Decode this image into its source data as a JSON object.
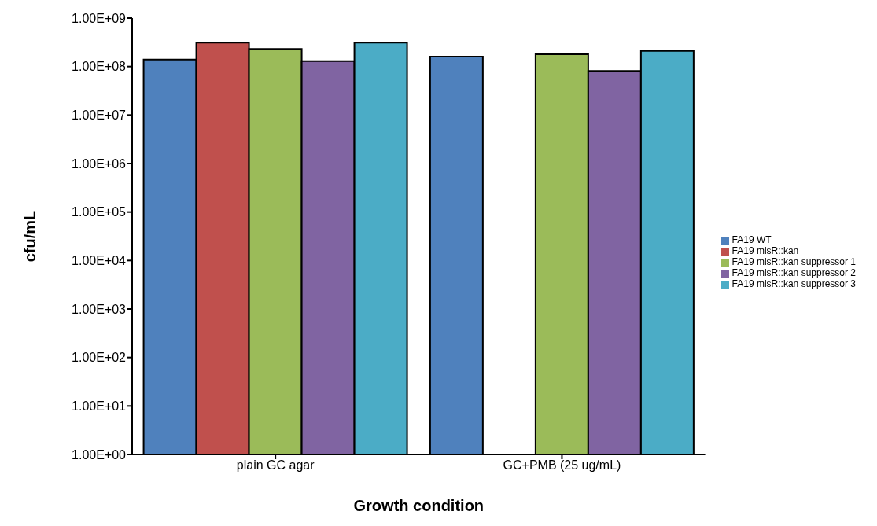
{
  "chart_data": {
    "type": "bar",
    "xlabel": "Growth condition",
    "ylabel": "cfu/mL",
    "categories": [
      "plain GC agar",
      "GC+PMB (25 ug/mL)"
    ],
    "series": [
      {
        "name": "FA19 WT",
        "color": "#4f81bd",
        "values": [
          140000000,
          160000000
        ]
      },
      {
        "name": "FA19 misR::kan",
        "color": "#c0504d",
        "values": [
          310000000,
          null
        ]
      },
      {
        "name": "FA19 misR::kan suppressor 1",
        "color": "#9bbb59",
        "values": [
          230000000,
          180000000
        ]
      },
      {
        "name": "FA19 misR::kan suppressor 2",
        "color": "#8064a2",
        "values": [
          130000000,
          81000000
        ]
      },
      {
        "name": "FA19 misR::kan suppressor 3",
        "color": "#4bacc6",
        "values": [
          310000000,
          210000000
        ]
      }
    ],
    "log": "y",
    "ylim": [
      1,
      1000000000
    ],
    "yticks": [
      {
        "value": 1,
        "label": "1.00E+00"
      },
      {
        "value": 10,
        "label": "1.00E+01"
      },
      {
        "value": 100,
        "label": "1.00E+02"
      },
      {
        "value": 1000,
        "label": "1.00E+03"
      },
      {
        "value": 10000,
        "label": "1.00E+04"
      },
      {
        "value": 100000,
        "label": "1.00E+05"
      },
      {
        "value": 1000000,
        "label": "1.00E+06"
      },
      {
        "value": 10000000,
        "label": "1.00E+07"
      },
      {
        "value": 100000000,
        "label": "1.00E+08"
      },
      {
        "value": 1000000000,
        "label": "1.00E+09"
      }
    ],
    "grid": false,
    "legend": "right"
  }
}
